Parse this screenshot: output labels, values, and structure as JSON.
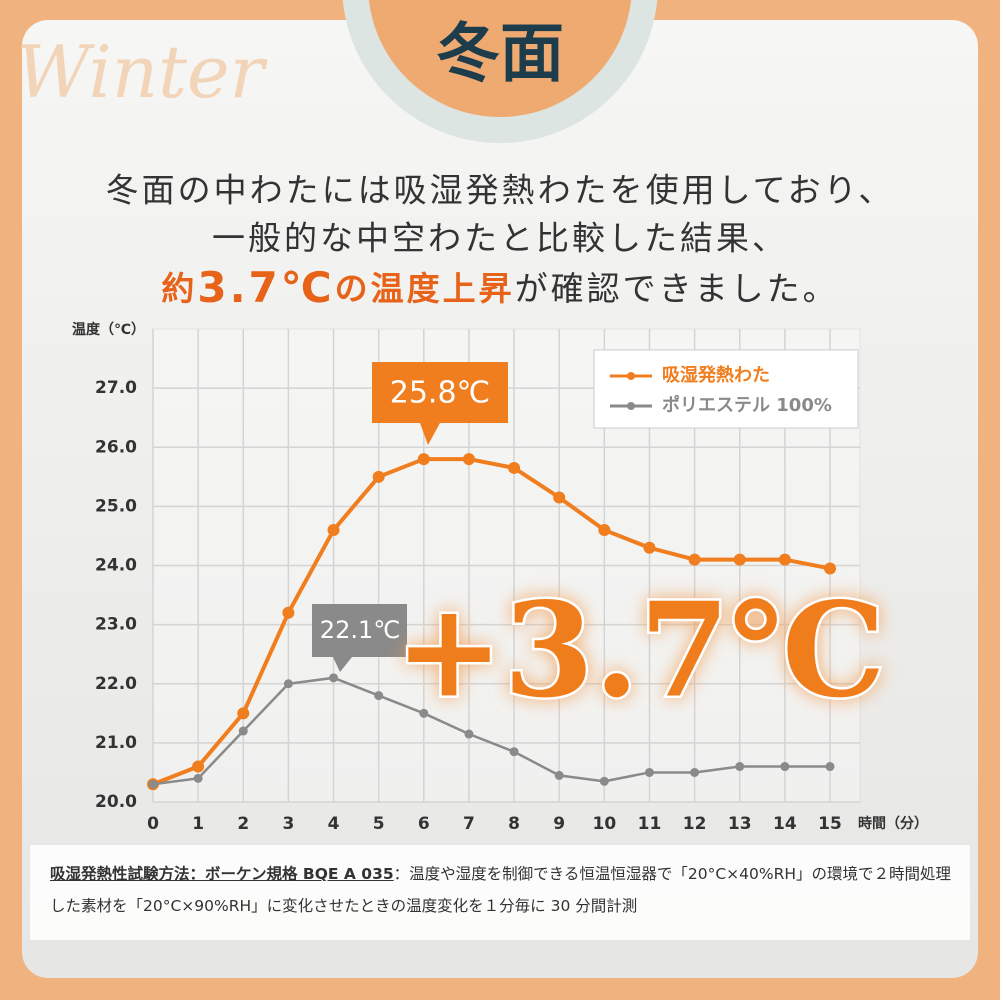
{
  "watermark": "Winter",
  "badge": "冬面",
  "intro": {
    "lines": [
      "冬面の中わたには吸湿発熱わたを使用しており、",
      "一般的な中空わたと比較した結果、"
    ],
    "emphasis_prefix": "約",
    "emphasis_value": "3.7℃",
    "emphasis_suffix": "の温度上昇",
    "tail": "が確認できました。"
  },
  "chart_data": {
    "type": "line",
    "y_label": "温度（℃）",
    "x_label": "時間（分）",
    "x": [
      0,
      1,
      2,
      3,
      4,
      5,
      6,
      7,
      8,
      9,
      10,
      11,
      12,
      13,
      14,
      15
    ],
    "series": [
      {
        "name": "吸湿発熱わた",
        "color": "#f07d1e",
        "values": [
          20.3,
          20.6,
          21.5,
          23.2,
          24.6,
          25.5,
          25.8,
          25.8,
          25.65,
          25.15,
          24.6,
          24.3,
          24.1,
          24.1,
          24.1,
          23.95
        ]
      },
      {
        "name": "ポリエステル 100%",
        "color": "#8a8a8a",
        "values": [
          20.3,
          20.4,
          21.2,
          22.0,
          22.1,
          21.8,
          21.5,
          21.15,
          20.85,
          20.45,
          20.35,
          20.5,
          20.5,
          20.6,
          20.6,
          20.6
        ]
      }
    ],
    "xlim": [
      0,
      15
    ],
    "ylim": [
      20,
      28
    ],
    "xticks": [
      0,
      1,
      2,
      3,
      4,
      5,
      6,
      7,
      8,
      9,
      10,
      11,
      12,
      13,
      14,
      15
    ],
    "yticks": [
      {
        "value": 20,
        "label": "20.0"
      },
      {
        "value": 21,
        "label": "21.0"
      },
      {
        "value": 22,
        "label": "22.0"
      },
      {
        "value": 23,
        "label": "23.0"
      },
      {
        "value": 24,
        "label": "24.0"
      },
      {
        "value": 25,
        "label": "25.0"
      },
      {
        "value": 26,
        "label": "26.0"
      },
      {
        "value": 27,
        "label": "27.0"
      }
    ],
    "grid": true,
    "legend": "upper right",
    "annotations": [
      "25.8℃",
      "22.1℃",
      "+3.7℃"
    ]
  },
  "footnote": {
    "method": "吸湿発熱性試験方法：ボーケン規格 BQE A 035",
    "text": "：温度や湿度を制御できる恒温恒湿器で「20°C×40%RH」の環境で２時間処理した素材を「20°C×90%RH」に変化させたときの温度変化を１分毎に 30 分間計測"
  }
}
